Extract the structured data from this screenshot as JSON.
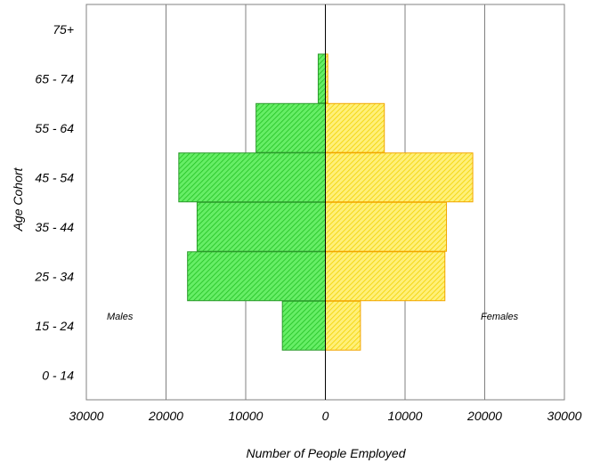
{
  "chart_data": {
    "type": "bar",
    "orientation": "horizontal",
    "subtype": "population-pyramid",
    "categories": [
      "0 - 14",
      "15 - 24",
      "25 - 34",
      "35 - 44",
      "45 - 54",
      "55 - 64",
      "65 - 74",
      "75+"
    ],
    "series": [
      {
        "name": "Males",
        "values": [
          0,
          5400,
          17300,
          16100,
          18400,
          8700,
          900,
          0
        ],
        "color": "#44e544",
        "stroke": "#2c9a2c",
        "side": "left"
      },
      {
        "name": "Females",
        "values": [
          0,
          4400,
          15000,
          15200,
          18500,
          7400,
          300,
          0
        ],
        "color": "#ffe63c",
        "stroke": "#f2a500",
        "side": "right"
      }
    ],
    "x_ticks": [
      "30000",
      "20000",
      "10000",
      "0",
      "10000",
      "20000",
      "30000"
    ],
    "xlim": [
      -30000,
      30000
    ],
    "xlabel": "Number of People Employed",
    "ylabel": "Age Cohort",
    "grid": "vertical",
    "fill_pattern": "diagonal-hatch"
  }
}
